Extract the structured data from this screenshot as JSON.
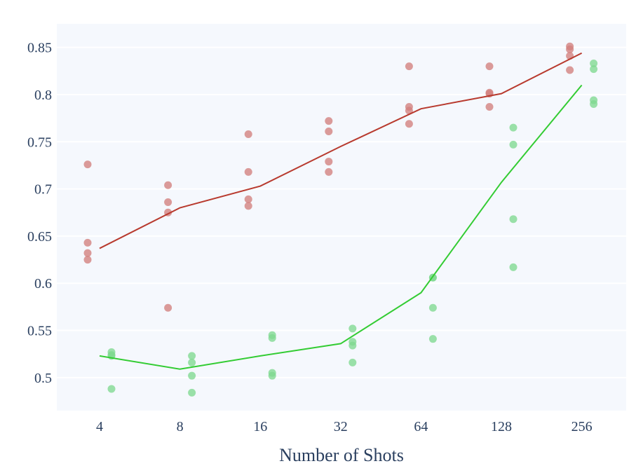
{
  "chart_data": {
    "type": "scatter",
    "xlabel": "Number of Shots",
    "ylabel": "",
    "x_scale": "log2",
    "x_ticks": [
      4,
      8,
      16,
      32,
      64,
      128,
      256
    ],
    "x_tick_labels": [
      "4",
      "8",
      "16",
      "32",
      "64",
      "128",
      "256"
    ],
    "ylim": [
      0.465,
      0.875
    ],
    "y_ticks": [
      0.5,
      0.55,
      0.6,
      0.65,
      0.7,
      0.75,
      0.8,
      0.85
    ],
    "y_tick_labels": [
      "0.5",
      "0.55",
      "0.6",
      "0.65",
      "0.7",
      "0.75",
      "0.8",
      "0.85"
    ],
    "grid": true,
    "background_color": "#f5f8fd",
    "series": [
      {
        "color": "#b83a2e",
        "marker_color": "#d27f7c",
        "line": {
          "x": [
            4,
            8,
            16,
            32,
            64,
            128,
            256
          ],
          "y": [
            0.637,
            0.68,
            0.703,
            0.745,
            0.785,
            0.801,
            0.844
          ]
        },
        "points": [
          {
            "x": 4,
            "y": 0.726
          },
          {
            "x": 4,
            "y": 0.643
          },
          {
            "x": 4,
            "y": 0.632
          },
          {
            "x": 4,
            "y": 0.625
          },
          {
            "x": 8,
            "y": 0.704
          },
          {
            "x": 8,
            "y": 0.686
          },
          {
            "x": 8,
            "y": 0.675
          },
          {
            "x": 8,
            "y": 0.574
          },
          {
            "x": 16,
            "y": 0.758
          },
          {
            "x": 16,
            "y": 0.718
          },
          {
            "x": 16,
            "y": 0.689
          },
          {
            "x": 16,
            "y": 0.682
          },
          {
            "x": 32,
            "y": 0.772
          },
          {
            "x": 32,
            "y": 0.761
          },
          {
            "x": 32,
            "y": 0.729
          },
          {
            "x": 32,
            "y": 0.718
          },
          {
            "x": 64,
            "y": 0.83
          },
          {
            "x": 64,
            "y": 0.787
          },
          {
            "x": 64,
            "y": 0.783
          },
          {
            "x": 64,
            "y": 0.769
          },
          {
            "x": 128,
            "y": 0.83
          },
          {
            "x": 128,
            "y": 0.802
          },
          {
            "x": 128,
            "y": 0.801
          },
          {
            "x": 128,
            "y": 0.787
          },
          {
            "x": 256,
            "y": 0.851
          },
          {
            "x": 256,
            "y": 0.848
          },
          {
            "x": 256,
            "y": 0.841
          },
          {
            "x": 256,
            "y": 0.826
          }
        ]
      },
      {
        "color": "#33cc33",
        "marker_color": "#7fd98f",
        "line": {
          "x": [
            4,
            8,
            16,
            32,
            64,
            128,
            256
          ],
          "y": [
            0.523,
            0.509,
            0.523,
            0.536,
            0.59,
            0.707,
            0.81
          ]
        },
        "points": [
          {
            "x": 4,
            "y": 0.527
          },
          {
            "x": 4,
            "y": 0.524
          },
          {
            "x": 4,
            "y": 0.523
          },
          {
            "x": 4,
            "y": 0.488
          },
          {
            "x": 8,
            "y": 0.523
          },
          {
            "x": 8,
            "y": 0.516
          },
          {
            "x": 8,
            "y": 0.502
          },
          {
            "x": 8,
            "y": 0.484
          },
          {
            "x": 16,
            "y": 0.545
          },
          {
            "x": 16,
            "y": 0.542
          },
          {
            "x": 16,
            "y": 0.505
          },
          {
            "x": 16,
            "y": 0.502
          },
          {
            "x": 32,
            "y": 0.552
          },
          {
            "x": 32,
            "y": 0.538
          },
          {
            "x": 32,
            "y": 0.534
          },
          {
            "x": 32,
            "y": 0.516
          },
          {
            "x": 64,
            "y": 0.606
          },
          {
            "x": 64,
            "y": 0.606
          },
          {
            "x": 64,
            "y": 0.574
          },
          {
            "x": 64,
            "y": 0.541
          },
          {
            "x": 128,
            "y": 0.765
          },
          {
            "x": 128,
            "y": 0.747
          },
          {
            "x": 128,
            "y": 0.668
          },
          {
            "x": 128,
            "y": 0.617
          },
          {
            "x": 256,
            "y": 0.833
          },
          {
            "x": 256,
            "y": 0.827
          },
          {
            "x": 256,
            "y": 0.794
          },
          {
            "x": 256,
            "y": 0.79
          }
        ]
      }
    ]
  }
}
